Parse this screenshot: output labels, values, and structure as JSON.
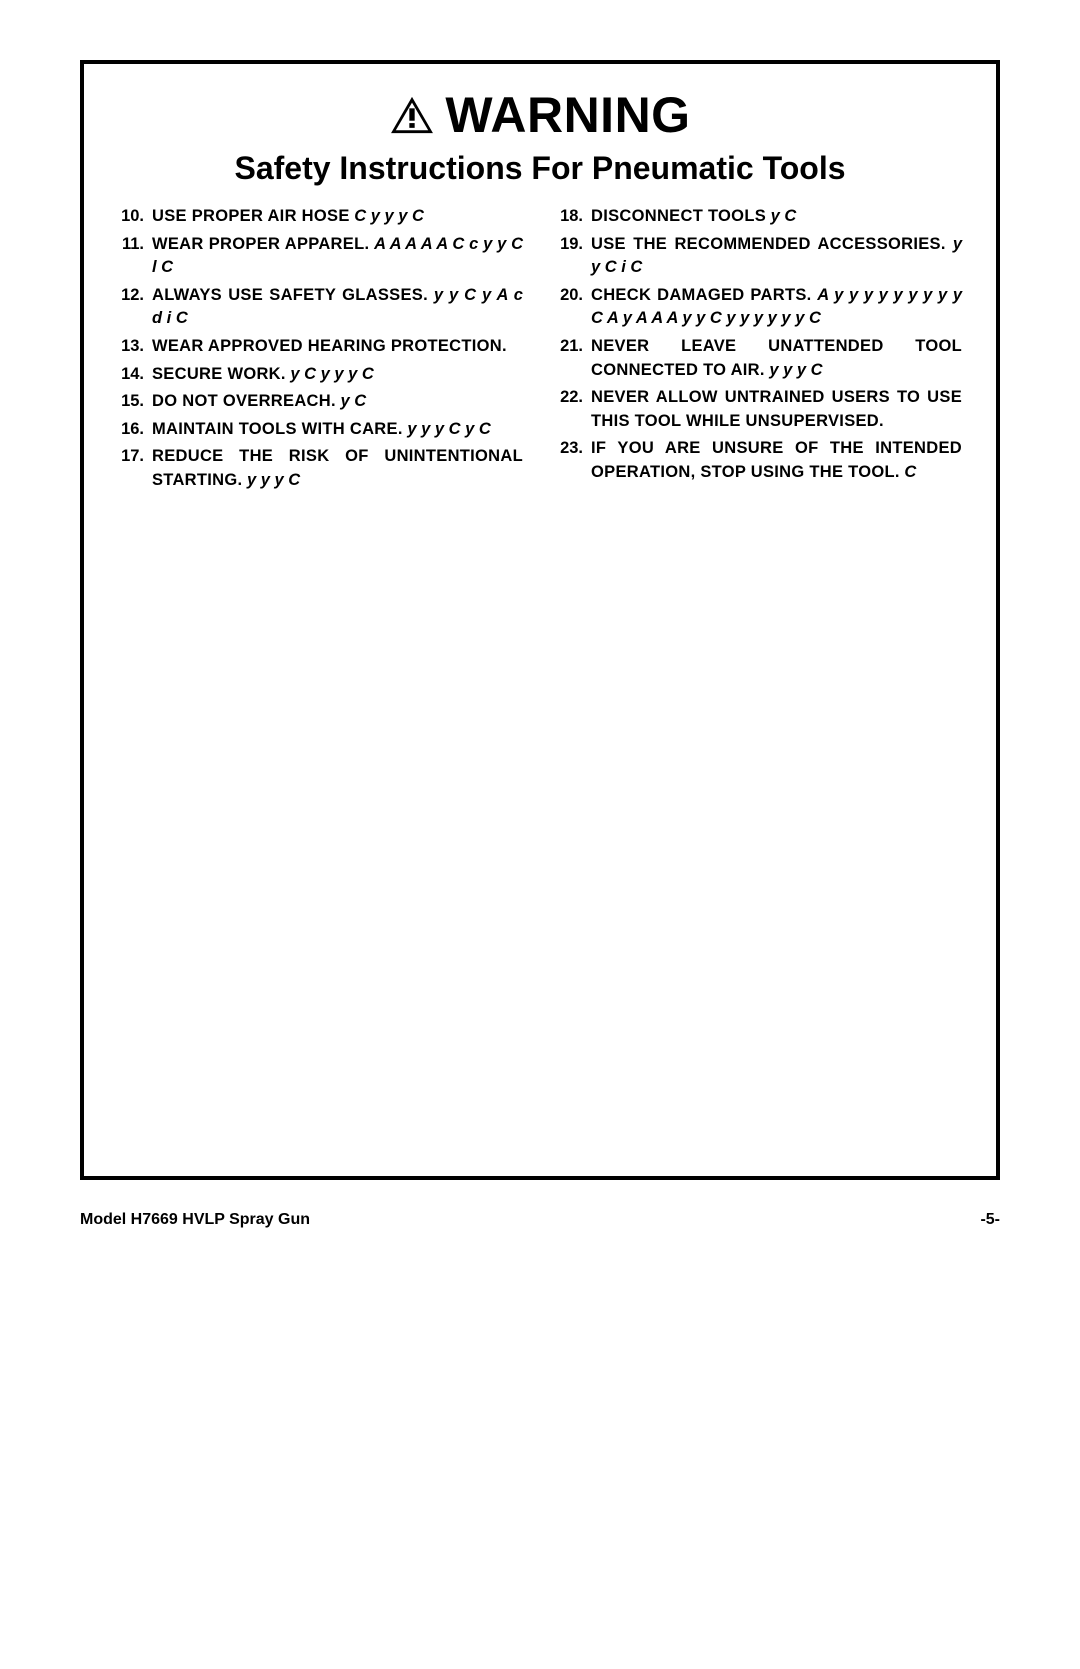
{
  "warning_label": "WARNING",
  "subtitle": "Safety Instructions For Pneumatic Tools",
  "footer_left": "Model H7669 HVLP Spray Gun",
  "footer_right": "-5-",
  "left_items": [
    {
      "num": "10.",
      "head": "USE PROPER AIR HOSE",
      "detail": "C                                                    y        y            y                                                                   C"
    },
    {
      "num": "11.",
      "head": "WEAR PROPER APPAREL.",
      "detail": "                                A            A       A       A              A                                                            C c                                         y  y C l                                                                       C"
    },
    {
      "num": "12.",
      "head": "ALWAYS USE SAFETY GLASSES.",
      "detail": "                               y                                    y     C        y                                                            A                c d i              C"
    },
    {
      "num": "13.",
      "head": "WEAR APPROVED HEARING PROTECTION.",
      "detail": ""
    },
    {
      "num": "14.",
      "head": "SECURE WORK.",
      "detail": "                                                     y                              C                                y    y                y                      C"
    },
    {
      "num": "15.",
      "head": "DO NOT OVERREACH.",
      "detail": "                                y                              C"
    },
    {
      "num": "16.",
      "head": "MAINTAIN TOOLS WITH CARE.",
      "detail": "                             y       y                       y                              C                                                           y                              C"
    },
    {
      "num": "17.",
      "head": "REDUCE THE RISK OF UNINTENTIONAL STARTING.",
      "detail": "                                          y                               y               y                                      C"
    }
  ],
  "right_items": [
    {
      "num": "18.",
      "head": "DISCONNECT TOOLS",
      "detail": "                                  y                          C"
    },
    {
      "num": "19.",
      "head": "USE THE RECOMMENDED ACCESSORIES.",
      "detail": "                                                        y  y                           C i                                                                                  C"
    },
    {
      "num": "20.",
      "head": "CHECK DAMAGED PARTS.",
      "detail": "                                                                   A              y                                y              y          y                          y              y                                                            y                         y  y               C                                                     A      y                                A                            A            A    y                      y                                           C          y                     y          y             y                            y              y C"
    },
    {
      "num": "21.",
      "head": "NEVER LEAVE UNATTENDED TOOL CONNECTED TO AIR.",
      "detail": "                                                          y y                                                y                                      C"
    },
    {
      "num": "22.",
      "head": "NEVER ALLOW UNTRAINED USERS TO USE THIS TOOL WHILE UNSUPERVISED.",
      "detail": ""
    },
    {
      "num": "23.",
      "head": "IF YOU ARE UNSURE OF THE INTENDED OPERATION, STOP USING THE TOOL.",
      "detail": "                                                                                                                                      C"
    }
  ]
}
